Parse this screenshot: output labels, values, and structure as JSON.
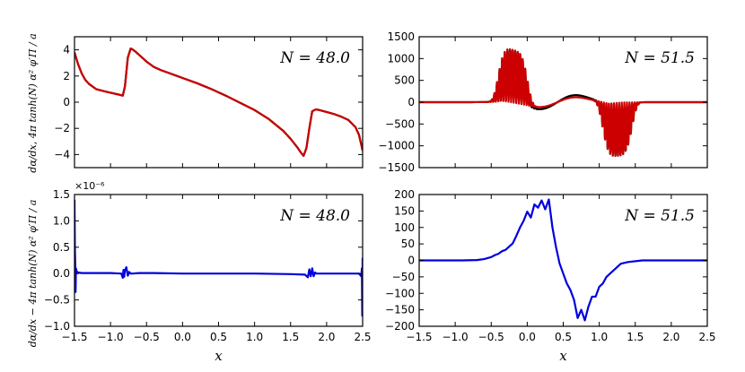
{
  "y_label_top": "dα/dx, 4π tanh(N) α² φ′Π / a",
  "y_label_bottom": "dα/dx − 4π tanh(N) α² φ′Π / a",
  "chart_data": [
    {
      "id": "top-left",
      "type": "line",
      "annotation": "N = 48.0",
      "xlim": [
        -1.5,
        2.5
      ],
      "ylim": [
        -5,
        5
      ],
      "xticks": [
        -1.5,
        -1.0,
        -0.5,
        0.0,
        0.5,
        1.0,
        1.5,
        2.0,
        2.5
      ],
      "yticks": [
        -4,
        -2,
        0,
        2,
        4
      ],
      "show_x_ticklabels": false,
      "series": [
        {
          "color": "#000000",
          "x": [
            -1.5,
            -1.45,
            -1.4,
            -1.35,
            -1.3,
            -1.2,
            -1.1,
            -1.0,
            -0.9,
            -0.83,
            -0.8,
            -0.76,
            -0.72,
            -0.7,
            -0.65,
            -0.6,
            -0.5,
            -0.4,
            -0.3,
            -0.2,
            -0.1,
            0.0,
            0.2,
            0.4,
            0.6,
            0.8,
            1.0,
            1.2,
            1.4,
            1.5,
            1.6,
            1.65,
            1.68,
            1.72,
            1.76,
            1.8,
            1.85,
            1.9,
            2.0,
            2.1,
            2.2,
            2.3,
            2.4,
            2.45,
            2.5
          ],
          "y": [
            3.8,
            2.9,
            2.2,
            1.7,
            1.4,
            1.0,
            0.85,
            0.72,
            0.6,
            0.5,
            1.2,
            3.4,
            4.1,
            4.05,
            3.85,
            3.6,
            3.1,
            2.7,
            2.45,
            2.25,
            2.05,
            1.85,
            1.45,
            1.0,
            0.5,
            -0.05,
            -0.6,
            -1.3,
            -2.2,
            -2.8,
            -3.5,
            -3.9,
            -4.1,
            -3.5,
            -2.0,
            -0.7,
            -0.55,
            -0.6,
            -0.75,
            -0.9,
            -1.1,
            -1.35,
            -1.9,
            -2.5,
            -3.7
          ]
        },
        {
          "color": "#cc0000",
          "x": [
            -1.5,
            -1.45,
            -1.4,
            -1.35,
            -1.3,
            -1.2,
            -1.1,
            -1.0,
            -0.9,
            -0.83,
            -0.8,
            -0.76,
            -0.72,
            -0.7,
            -0.65,
            -0.6,
            -0.5,
            -0.4,
            -0.3,
            -0.2,
            -0.1,
            0.0,
            0.2,
            0.4,
            0.6,
            0.8,
            1.0,
            1.2,
            1.4,
            1.5,
            1.6,
            1.65,
            1.68,
            1.72,
            1.76,
            1.8,
            1.85,
            1.9,
            2.0,
            2.1,
            2.2,
            2.3,
            2.4,
            2.45,
            2.5
          ],
          "y": [
            3.8,
            2.9,
            2.2,
            1.7,
            1.4,
            1.0,
            0.85,
            0.72,
            0.6,
            0.5,
            1.2,
            3.4,
            4.1,
            4.05,
            3.85,
            3.6,
            3.1,
            2.7,
            2.45,
            2.25,
            2.05,
            1.85,
            1.45,
            1.0,
            0.5,
            -0.05,
            -0.6,
            -1.3,
            -2.2,
            -2.8,
            -3.5,
            -3.9,
            -4.1,
            -3.5,
            -2.0,
            -0.7,
            -0.55,
            -0.6,
            -0.75,
            -0.9,
            -1.1,
            -1.35,
            -1.9,
            -2.5,
            -3.7
          ]
        }
      ]
    },
    {
      "id": "top-right",
      "type": "line",
      "annotation": "N = 51.5",
      "xlim": [
        -1.5,
        2.5
      ],
      "ylim": [
        -1500,
        1500
      ],
      "xticks": [
        -1.5,
        -1.0,
        -0.5,
        0.0,
        0.5,
        1.0,
        1.5,
        2.0,
        2.5
      ],
      "yticks": [
        -1500,
        -1000,
        -500,
        0,
        500,
        1000,
        1500
      ],
      "show_x_ticklabels": false,
      "generated_wave": true,
      "envelope": {
        "pos_center": -0.2,
        "pos_width": 0.22,
        "pos_amp": 1230,
        "neg_center": 1.25,
        "neg_width": 0.22,
        "neg_amp": 1230,
        "pos_range": [
          -0.72,
          0.35
        ],
        "neg_range": [
          0.5,
          1.65
        ],
        "freq": 28,
        "smooth_amp": 230
      },
      "series": [
        {
          "color": "#000000"
        },
        {
          "color": "#cc0000"
        }
      ]
    },
    {
      "id": "bottom-left",
      "type": "line",
      "annotation": "N = 48.0",
      "multiplier": "×10⁻⁶",
      "xlabel": "x",
      "xlim": [
        -1.5,
        2.5
      ],
      "ylim": [
        -1.0,
        1.5
      ],
      "xticks": [
        -1.5,
        -1.0,
        -0.5,
        0.0,
        0.5,
        1.0,
        1.5,
        2.0,
        2.5
      ],
      "yticks": [
        -1.0,
        -0.5,
        0.0,
        0.5,
        1.0,
        1.5
      ],
      "show_x_ticklabels": true,
      "series": [
        {
          "color": "#0000dd",
          "x": [
            -1.5,
            -1.495,
            -1.49,
            -1.485,
            -1.48,
            -1.47,
            -1.45,
            -1.4,
            -1.2,
            -1.0,
            -0.85,
            -0.83,
            -0.82,
            -0.81,
            -0.8,
            -0.78,
            -0.76,
            -0.74,
            -0.72,
            -0.7,
            -0.6,
            -0.4,
            0.0,
            0.5,
            1.0,
            1.5,
            1.7,
            1.74,
            1.76,
            1.78,
            1.8,
            1.82,
            1.84,
            1.86,
            1.9,
            2.1,
            2.3,
            2.45,
            2.48,
            2.49,
            2.495,
            2.5
          ],
          "y": [
            1.4,
            0.5,
            0.2,
            -0.35,
            0.1,
            0.04,
            0.02,
            0.01,
            0.01,
            0.01,
            0.0,
            -0.08,
            0.07,
            -0.06,
            0.06,
            0.12,
            -0.04,
            0.03,
            0.0,
            0.0,
            0.01,
            0.01,
            0.0,
            0.0,
            0.0,
            -0.01,
            -0.02,
            -0.07,
            0.08,
            -0.05,
            0.1,
            -0.05,
            0.02,
            0.0,
            0.0,
            0.0,
            0.0,
            0.0,
            -0.05,
            0.1,
            -0.8,
            0.3
          ]
        }
      ]
    },
    {
      "id": "bottom-right",
      "type": "line",
      "annotation": "N = 51.5",
      "xlabel": "x",
      "xlim": [
        -1.5,
        2.5
      ],
      "ylim": [
        -200,
        200
      ],
      "xticks": [
        -1.5,
        -1.0,
        -0.5,
        0.0,
        0.5,
        1.0,
        1.5,
        2.0,
        2.5
      ],
      "yticks": [
        -200,
        -150,
        -100,
        -50,
        0,
        50,
        100,
        150,
        200
      ],
      "show_x_ticklabels": true,
      "series": [
        {
          "color": "#0000dd",
          "x": [
            -1.5,
            -0.9,
            -0.7,
            -0.6,
            -0.55,
            -0.5,
            -0.45,
            -0.4,
            -0.35,
            -0.3,
            -0.25,
            -0.2,
            -0.15,
            -0.1,
            -0.05,
            0.0,
            0.05,
            0.1,
            0.15,
            0.2,
            0.25,
            0.3,
            0.35,
            0.4,
            0.45,
            0.5,
            0.55,
            0.6,
            0.65,
            0.7,
            0.75,
            0.8,
            0.85,
            0.9,
            0.95,
            1.0,
            1.05,
            1.1,
            1.15,
            1.2,
            1.25,
            1.3,
            1.4,
            1.6,
            2.5
          ],
          "y": [
            0,
            0,
            1,
            4,
            7,
            10,
            16,
            20,
            28,
            32,
            42,
            52,
            75,
            100,
            120,
            148,
            130,
            170,
            160,
            182,
            155,
            185,
            100,
            40,
            -10,
            -40,
            -70,
            -90,
            -120,
            -175,
            -150,
            -182,
            -140,
            -110,
            -110,
            -80,
            -70,
            -50,
            -40,
            -30,
            -20,
            -10,
            -5,
            0,
            0
          ]
        }
      ]
    }
  ]
}
